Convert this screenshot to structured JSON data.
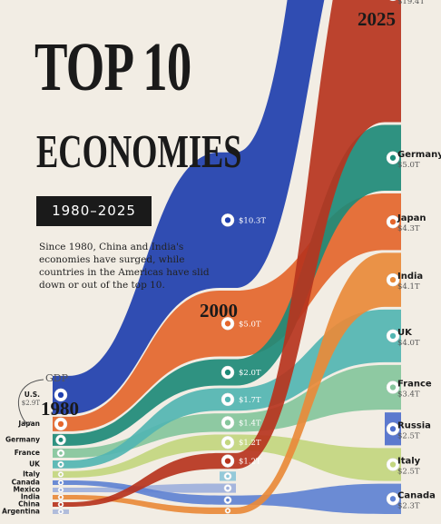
{
  "title_line1": "TOP 10",
  "title_line2": "ECONOMIES",
  "years": "1980–2025",
  "description": "Since 1980, China and India's economies have surged, while countries in the Americas have slid down or out of the top 10.",
  "gdp_note": "GDP",
  "colors": {
    "U.S.": "#1f3fae",
    "China": "#b7341e",
    "Germany": "#1e8a78",
    "Japan": "#e4662c",
    "India": "#e98a3a",
    "UK": "#52b5b2",
    "France": "#86c59c",
    "Italy": "#c3d67f",
    "Russia": "#4f6fcc",
    "Canada": "#5f82d3",
    "Mexico": "#9eb0dc",
    "Argentina": "#aab7da",
    "Brazil": "#8cc6d8"
  },
  "chart_data": {
    "type": "bump-area",
    "x": [
      "1980",
      "2000",
      "2025"
    ],
    "unit": "GDP (USD trillions)",
    "series": [
      {
        "name": "U.S.",
        "label": "U.S.",
        "values": [
          2.9,
          10.3,
          30.6
        ],
        "value_labels": [
          "$2.9T",
          "$10.3T",
          "$30.6T"
        ]
      },
      {
        "name": "China",
        "label": "China",
        "values": [
          0.2,
          1.2,
          19.4
        ],
        "value_labels": [
          "",
          "$1.2T",
          "$19.4T"
        ]
      },
      {
        "name": "Germany",
        "label": "Germany",
        "values": [
          0.9,
          2.0,
          5.0
        ],
        "value_labels": [
          "",
          "$2.0T",
          "$5.0T"
        ]
      },
      {
        "name": "Japan",
        "label": "Japan",
        "values": [
          1.1,
          5.0,
          4.3
        ],
        "value_labels": [
          "",
          "$5.0T",
          "$4.3T"
        ]
      },
      {
        "name": "India",
        "label": "India",
        "values": [
          0.2,
          0.5,
          4.1
        ],
        "value_labels": [
          "",
          "",
          "$4.1T"
        ]
      },
      {
        "name": "UK",
        "label": "UK",
        "values": [
          0.6,
          1.7,
          4.0
        ],
        "value_labels": [
          "",
          "$1.7T",
          "$4.0T"
        ]
      },
      {
        "name": "France",
        "label": "France",
        "values": [
          0.7,
          1.4,
          3.4
        ],
        "value_labels": [
          "",
          "$1.4T",
          "$3.4T"
        ]
      },
      {
        "name": "Italy",
        "label": "Italy",
        "values": [
          0.5,
          1.2,
          2.5
        ],
        "value_labels": [
          "",
          "$1.2T",
          "$2.5T"
        ]
      },
      {
        "name": "Russia",
        "label": "Russia",
        "values": [
          null,
          null,
          2.5
        ],
        "value_labels": [
          "",
          "",
          "$2.5T"
        ]
      },
      {
        "name": "Canada",
        "label": "Canada",
        "values": [
          0.3,
          0.7,
          2.3
        ],
        "value_labels": [
          "",
          "",
          "$2.3T"
        ]
      },
      {
        "name": "Mexico",
        "label": "Mexico",
        "values": [
          0.2,
          0.7,
          null
        ],
        "value_labels": [
          "",
          "",
          ""
        ]
      },
      {
        "name": "Argentina",
        "label": "Argentina",
        "values": [
          0.1,
          null,
          null
        ],
        "value_labels": [
          "",
          "",
          ""
        ]
      },
      {
        "name": "Brazil",
        "label": "",
        "values": [
          null,
          0.7,
          null
        ],
        "value_labels": [
          "",
          "",
          ""
        ]
      }
    ]
  }
}
